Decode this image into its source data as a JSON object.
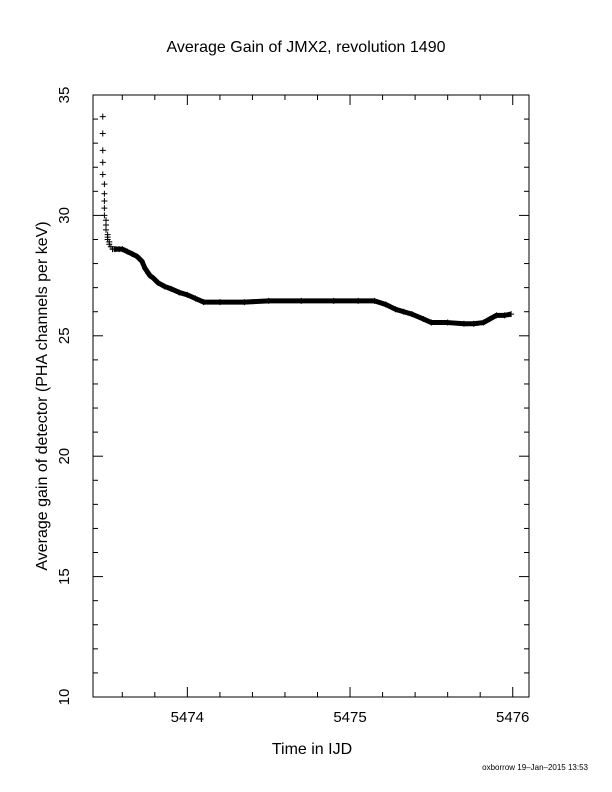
{
  "chart_data": {
    "type": "scatter",
    "title": "Average Gain of JMX2, revolution 1490",
    "xlabel": "Time in IJD",
    "ylabel": "Average gain of detector (PHA channels per keV)",
    "xlim": [
      5473.42,
      5476.1
    ],
    "ylim": [
      10,
      35
    ],
    "x_ticks": [
      5474,
      5475,
      5476
    ],
    "y_ticks": [
      10,
      15,
      20,
      25,
      30,
      35
    ],
    "marker": "plus",
    "marker_color": "#000000",
    "grid": false,
    "legend": "none",
    "series": [
      {
        "x": [
          5473.48,
          5473.48,
          5473.48,
          5473.48,
          5473.48,
          5473.49,
          5473.49,
          5473.49,
          5473.49,
          5473.49,
          5473.5,
          5473.5,
          5473.5,
          5473.51,
          5473.51,
          5473.51,
          5473.52,
          5473.52,
          5473.53,
          5473.54,
          5473.55,
          5473.56,
          5473.58,
          5473.6,
          5473.63,
          5473.66,
          5473.69,
          5473.72,
          5473.74,
          5473.76,
          5473.77,
          5473.79,
          5473.82,
          5473.86,
          5473.9,
          5473.95,
          5474.0,
          5474.05,
          5474.1,
          5474.2,
          5474.35,
          5474.5,
          5474.7,
          5474.9,
          5475.05,
          5475.15,
          5475.22,
          5475.28,
          5475.33,
          5475.38,
          5475.45,
          5475.5,
          5475.6,
          5475.7,
          5475.76,
          5475.82,
          5475.86,
          5475.9,
          5475.95,
          5475.99
        ],
        "y": [
          34.1,
          33.4,
          32.7,
          32.2,
          31.7,
          31.3,
          30.9,
          30.6,
          30.3,
          30.0,
          29.8,
          29.6,
          29.4,
          29.2,
          29.1,
          29.0,
          28.9,
          28.8,
          28.7,
          28.6,
          28.6,
          28.6,
          28.6,
          28.6,
          28.5,
          28.4,
          28.3,
          28.1,
          27.8,
          27.6,
          27.5,
          27.4,
          27.2,
          27.05,
          26.95,
          26.8,
          26.7,
          26.55,
          26.4,
          26.4,
          26.4,
          26.45,
          26.45,
          26.45,
          26.45,
          26.45,
          26.3,
          26.1,
          26.0,
          25.9,
          25.7,
          25.55,
          25.55,
          25.5,
          25.5,
          25.55,
          25.7,
          25.85,
          25.85,
          25.9
        ]
      }
    ]
  },
  "footer": {
    "credit": "oxborrow 19–Jan–2015 13:53"
  }
}
